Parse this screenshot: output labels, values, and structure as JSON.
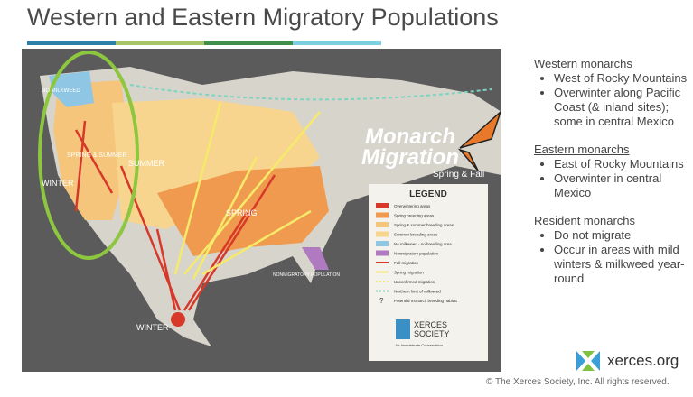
{
  "title": "Western and Eastern Migratory Populations",
  "map": {
    "labels": [
      "NO MILKWEED",
      "SPRING & SUMMER",
      "SUMMER",
      "WINTER",
      "SPRING",
      "WINTER",
      "NONMIGRATORY POPULATION"
    ],
    "heading": [
      "Monarch",
      "Migration"
    ],
    "subheading": "Spring & Fall",
    "legend": {
      "title": "LEGEND",
      "items": [
        "Overwintering areas",
        "Spring breeding areas",
        "Spring & summer breeding areas",
        "Summer breeding areas",
        "No milkweed - no breeding area",
        "Nonmigratory population",
        "Fall migration",
        "Spring migration",
        "Unconfirmed migration",
        "Northern limit of milkweed",
        "Potential monarch breeding habitat"
      ]
    },
    "logo": [
      "XERCES",
      "SOCIETY",
      "for Invertebrate Conservation"
    ]
  },
  "sections": [
    {
      "heading": "Western monarchs",
      "bullets": [
        "West of Rocky Mountains",
        "Overwinter along Pacific Coast (& inland sites); some in central Mexico"
      ]
    },
    {
      "heading": "Eastern monarchs",
      "bullets": [
        "East of Rocky Mountains",
        "Overwinter in central Mexico"
      ]
    },
    {
      "heading": "Resident monarchs",
      "bullets": [
        "Do not migrate",
        "Occur in areas with mild winters & milkweed year-round"
      ]
    }
  ],
  "site": "xerces.org",
  "footer": "© The Xerces Society, Inc. All rights reserved."
}
